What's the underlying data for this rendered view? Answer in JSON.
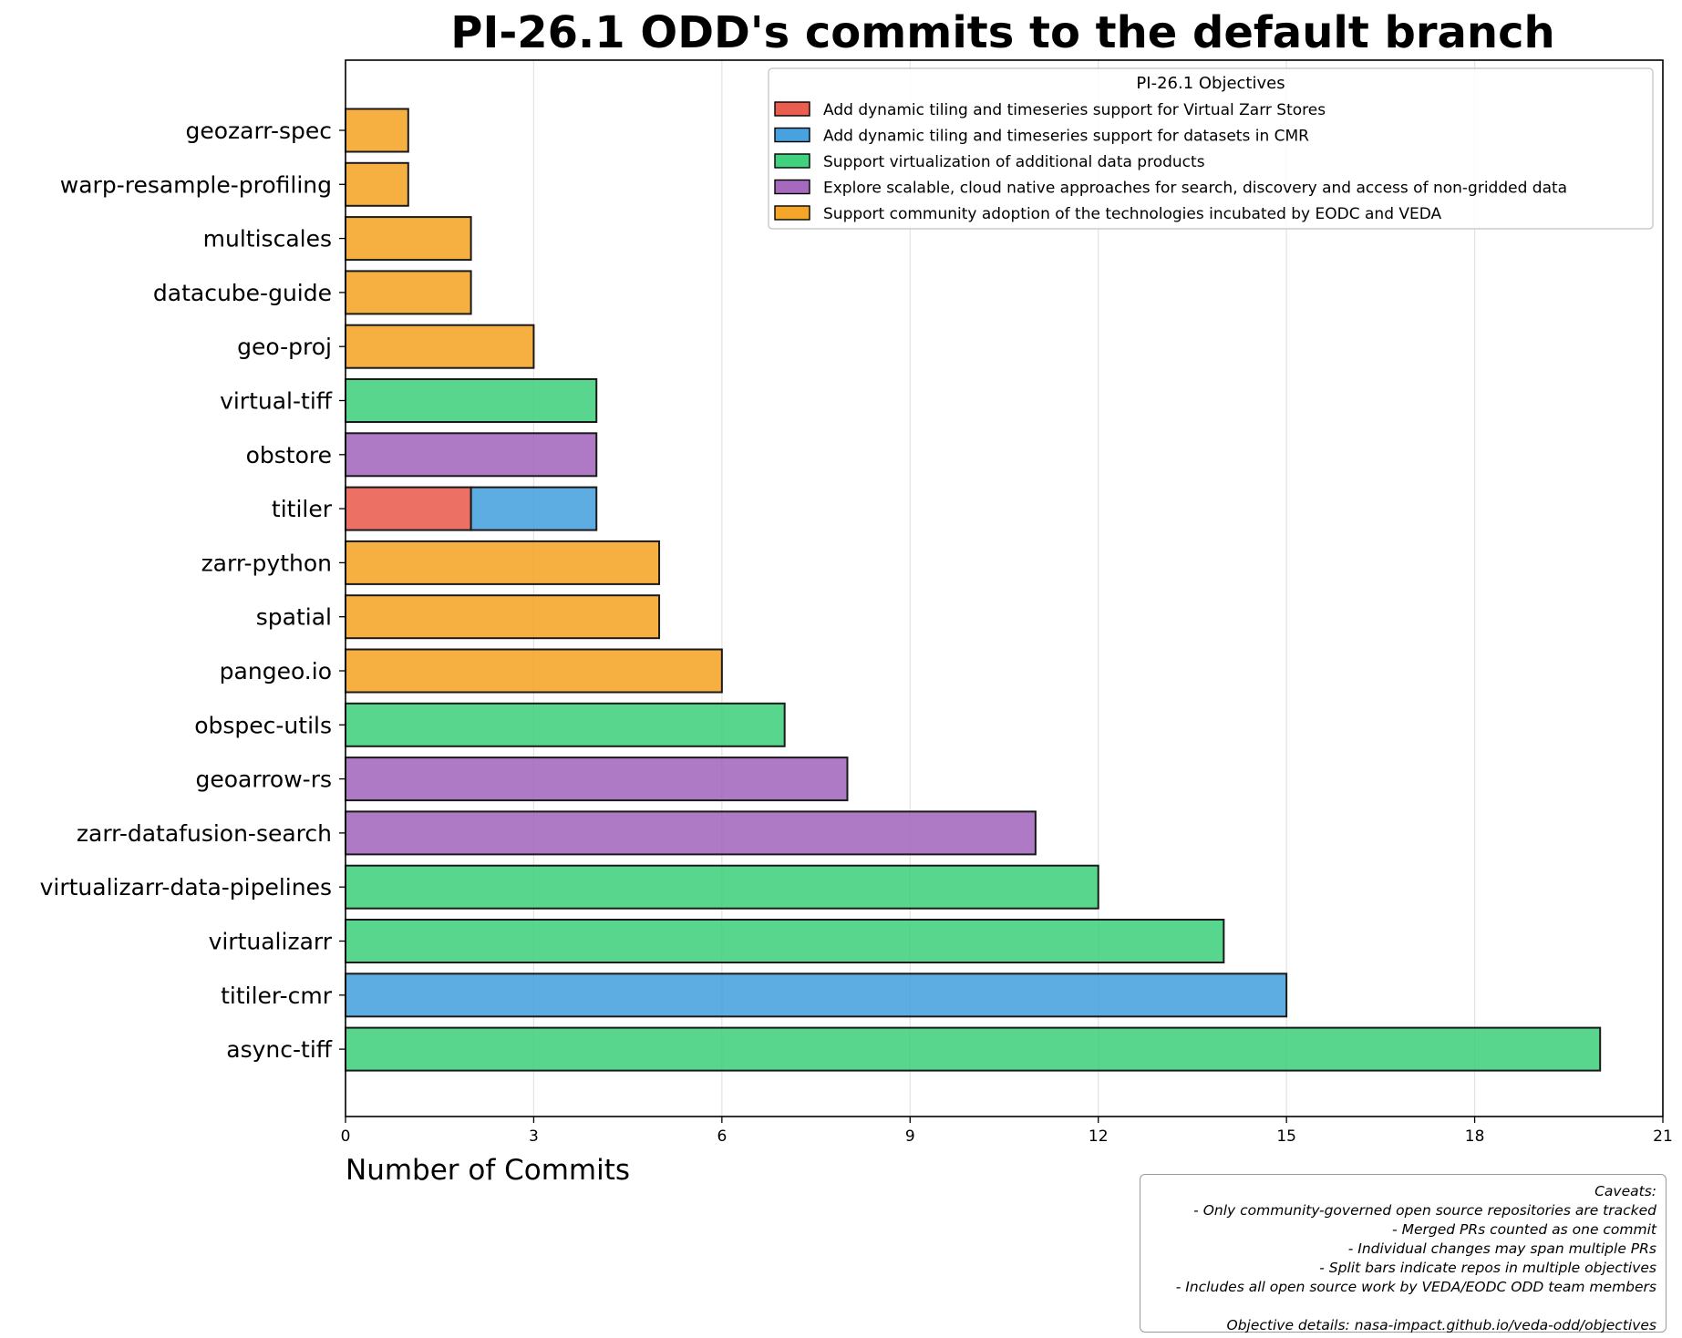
{
  "chart_data": {
    "type": "bar",
    "orientation": "horizontal",
    "stacked": true,
    "title": "PI-26.1 ODD's commits to the default branch",
    "xlabel": "Number of Commits",
    "ylabel": "",
    "xlim": [
      0,
      21
    ],
    "xticks": [
      0,
      3,
      6,
      9,
      12,
      15,
      18,
      21
    ],
    "grid": "x",
    "categories": [
      "geozarr-spec",
      "warp-resample-profiling",
      "multiscales",
      "datacube-guide",
      "geo-proj",
      "virtual-tiff",
      "obstore",
      "titiler",
      "zarr-python",
      "spatial",
      "pangeo.io",
      "obspec-utils",
      "geoarrow-rs",
      "zarr-datafusion-search",
      "virtualizarr-data-pipelines",
      "virtualizarr",
      "titiler-cmr",
      "async-tiff"
    ],
    "series": [
      {
        "name": " Add dynamic tiling and timeseries support for Virtual Zarr Stores",
        "color": "#e74c3c",
        "values": [
          0,
          0,
          0,
          0,
          0,
          0,
          0,
          2,
          0,
          0,
          0,
          0,
          0,
          0,
          0,
          0,
          0,
          0
        ]
      },
      {
        "name": "Add dynamic tiling and timeseries support for datasets in CMR",
        "color": "#3498db",
        "values": [
          0,
          0,
          0,
          0,
          0,
          0,
          0,
          2,
          0,
          0,
          0,
          0,
          0,
          0,
          0,
          0,
          15,
          0
        ]
      },
      {
        "name": "Support virtualization of additional data products",
        "color": "#2ecc71",
        "values": [
          0,
          0,
          0,
          0,
          0,
          4,
          0,
          0,
          0,
          0,
          0,
          7,
          0,
          0,
          12,
          14,
          0,
          20
        ]
      },
      {
        "name": "Explore scalable, cloud native approaches for search, discovery and access of non-gridded data",
        "color": "#9b59b6",
        "values": [
          0,
          0,
          0,
          0,
          0,
          0,
          4,
          0,
          0,
          0,
          0,
          0,
          8,
          11,
          0,
          0,
          0,
          0
        ]
      },
      {
        "name": "Support community adoption of the technologies incubated by EODC and VEDA",
        "color": "#f39c12",
        "values": [
          1,
          1,
          2,
          2,
          3,
          0,
          0,
          0,
          5,
          5,
          6,
          0,
          0,
          0,
          0,
          0,
          0,
          0
        ]
      }
    ],
    "legend": {
      "title": "PI-26.1 Objectives",
      "placement": "top-right"
    }
  },
  "caveats": {
    "lines": [
      "Caveats:",
      "- Only community-governed open source repositories are tracked",
      "- Merged PRs counted as one commit",
      "- Individual changes may span multiple PRs",
      "- Split bars indicate repos in multiple objectives",
      "- Includes all open source work by VEDA/EODC ODD team members"
    ],
    "details": "Objective details: nasa-impact.github.io/veda-odd/objectives"
  }
}
